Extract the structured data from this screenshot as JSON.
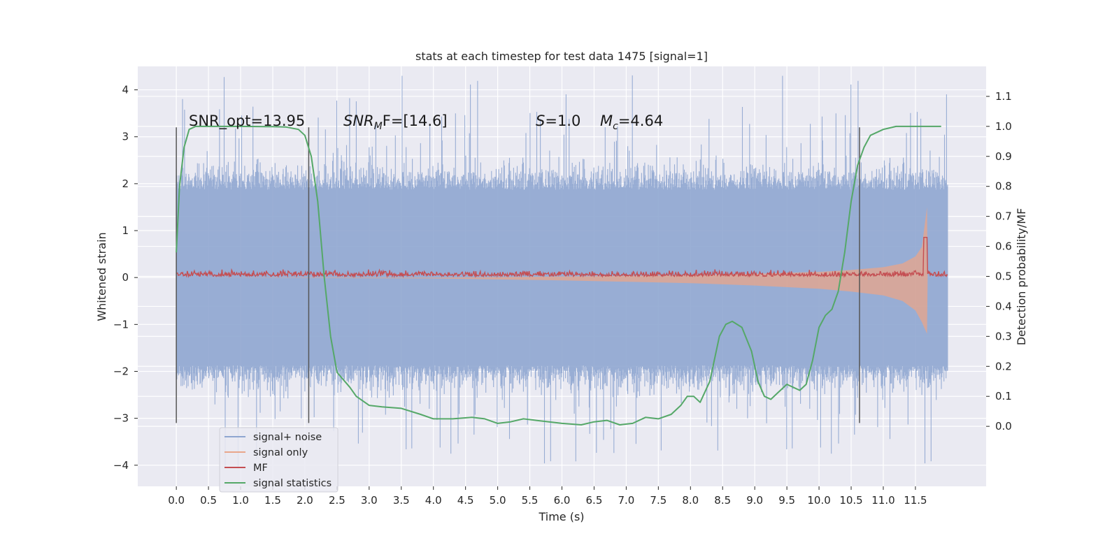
{
  "chart_data": {
    "type": "line",
    "title": "stats at each timestep for test data 1475 [signal=1]",
    "xlabel": "Time (s)",
    "ylabel_left": "Whitened strain",
    "ylabel_right": "Detection probability/MF",
    "xlim": [
      -0.6,
      12.6
    ],
    "ylim_left": [
      -4.45,
      4.5
    ],
    "ylim_right": [
      -0.2,
      1.2
    ],
    "x_ticks": [
      "0.0",
      "0.5",
      "1.0",
      "1.5",
      "2.0",
      "2.5",
      "3.0",
      "3.5",
      "4.0",
      "4.5",
      "5.0",
      "5.5",
      "6.0",
      "6.5",
      "7.0",
      "7.5",
      "8.0",
      "8.5",
      "9.0",
      "9.5",
      "10.0",
      "10.5",
      "11.0",
      "11.5"
    ],
    "y_ticks_left": [
      "−4",
      "−3",
      "−2",
      "−1",
      "0",
      "1",
      "2",
      "3",
      "4"
    ],
    "y_ticks_right": [
      "0.0",
      "0.1",
      "0.2",
      "0.3",
      "0.4",
      "0.5",
      "0.6",
      "0.7",
      "0.8",
      "0.9",
      "1.0",
      "1.1"
    ],
    "annotations": {
      "snr_opt": "SNR_opt=13.95",
      "snr_mf_italic": "SNR",
      "snr_mf_sub": "M",
      "snr_mf_rest": "F=[14.6]",
      "s_italic": "S",
      "s_rest": "=1.0",
      "mc_italic": "M",
      "mc_sub": "c",
      "mc_rest": "=4.64"
    },
    "vlines_x": [
      0.0,
      2.06,
      10.63
    ],
    "vline_y_range": [
      -3.1,
      3.2
    ],
    "legend": {
      "placement": "lower-left",
      "entries": [
        {
          "label": "signal+ noise",
          "color": "#8fa6d0"
        },
        {
          "label": "signal only",
          "color": "#e9a68a"
        },
        {
          "label": "MF",
          "color": "#c44e52"
        },
        {
          "label": "signal statistics",
          "color": "#55a868"
        }
      ]
    },
    "series": [
      {
        "name": "signal+ noise",
        "axis": "left",
        "kind": "noise-band",
        "x_range": [
          0.0,
          12.0
        ],
        "typical_amplitude": 2.2,
        "max_peak": 4.1,
        "min_trough": -4.0,
        "color": "#8fa6d0"
      },
      {
        "name": "signal only",
        "axis": "left",
        "kind": "chirp-envelope",
        "x": [
          0.0,
          4.0,
          6.0,
          8.0,
          9.0,
          10.0,
          10.5,
          11.0,
          11.3,
          11.5,
          11.6,
          11.68,
          11.69
        ],
        "upper": [
          0.0,
          0.0,
          0.02,
          0.05,
          0.08,
          0.12,
          0.16,
          0.22,
          0.3,
          0.45,
          0.65,
          1.5,
          0.0
        ],
        "lower": [
          0.0,
          -0.02,
          -0.06,
          -0.12,
          -0.17,
          -0.24,
          -0.3,
          -0.38,
          -0.5,
          -0.7,
          -0.95,
          -1.2,
          0.0
        ],
        "color": "#e9a68a"
      },
      {
        "name": "MF",
        "axis": "right",
        "kind": "noisy-line",
        "x_range": [
          0.0,
          12.0
        ],
        "base": 0.5,
        "jitter": 0.02,
        "peak_x": 11.65,
        "peak_value": 0.63,
        "color": "#c44e52"
      },
      {
        "name": "signal statistics",
        "axis": "right",
        "kind": "line",
        "x": [
          0.0,
          0.05,
          0.12,
          0.2,
          0.3,
          0.5,
          1.0,
          1.5,
          1.7,
          1.9,
          2.0,
          2.1,
          2.2,
          2.3,
          2.4,
          2.5,
          2.7,
          2.8,
          3.0,
          3.2,
          3.5,
          3.8,
          4.0,
          4.3,
          4.6,
          4.8,
          5.0,
          5.2,
          5.4,
          5.6,
          5.8,
          6.0,
          6.3,
          6.5,
          6.7,
          6.9,
          7.1,
          7.3,
          7.5,
          7.7,
          7.85,
          7.95,
          8.05,
          8.15,
          8.3,
          8.45,
          8.55,
          8.65,
          8.8,
          8.95,
          9.05,
          9.15,
          9.25,
          9.35,
          9.5,
          9.6,
          9.7,
          9.8,
          9.9,
          10.0,
          10.1,
          10.2,
          10.3,
          10.4,
          10.5,
          10.6,
          10.7,
          10.8,
          11.0,
          11.2,
          11.5,
          11.9
        ],
        "y": [
          0.58,
          0.8,
          0.93,
          0.99,
          1.0,
          1.0,
          1.0,
          0.999,
          0.998,
          0.99,
          0.97,
          0.9,
          0.75,
          0.5,
          0.3,
          0.18,
          0.13,
          0.1,
          0.07,
          0.065,
          0.06,
          0.04,
          0.025,
          0.025,
          0.03,
          0.025,
          0.01,
          0.015,
          0.025,
          0.02,
          0.015,
          0.01,
          0.005,
          0.015,
          0.02,
          0.005,
          0.01,
          0.03,
          0.025,
          0.04,
          0.07,
          0.1,
          0.1,
          0.08,
          0.15,
          0.3,
          0.34,
          0.35,
          0.33,
          0.25,
          0.15,
          0.1,
          0.09,
          0.11,
          0.14,
          0.13,
          0.12,
          0.14,
          0.22,
          0.33,
          0.37,
          0.39,
          0.45,
          0.58,
          0.75,
          0.87,
          0.93,
          0.97,
          0.99,
          1.0,
          1.0,
          1.0
        ],
        "color": "#55a868"
      }
    ]
  }
}
